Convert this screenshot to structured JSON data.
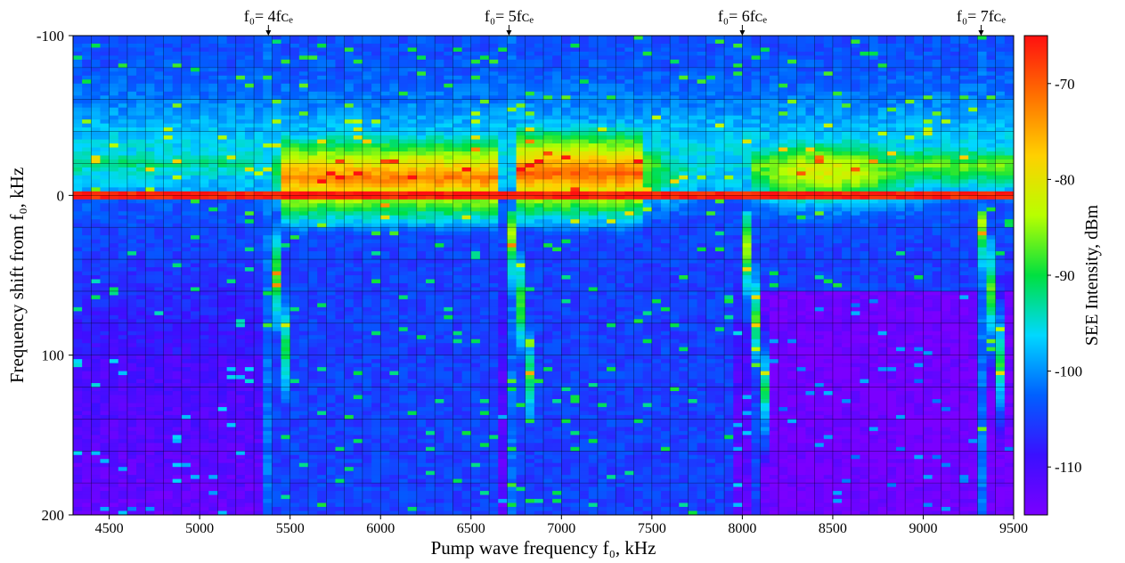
{
  "chart_data": {
    "type": "heatmap",
    "xlabel": "Pump wave frequency f₀, kHz",
    "ylabel": "Frequency shift from f₀, kHz",
    "colorbar_label": "SEE Intensity, dBm",
    "xlim": [
      4300,
      9500
    ],
    "ylim": [
      -100,
      200
    ],
    "y_inverted": true,
    "x_ticks": [
      4500,
      5000,
      5500,
      6000,
      6500,
      7000,
      7500,
      8000,
      8500,
      9000,
      9500
    ],
    "y_ticks": [
      -100,
      0,
      100,
      200
    ],
    "colorbar_range": [
      -115,
      -65
    ],
    "colorbar_ticks": [
      -70,
      -80,
      -90,
      -100,
      -110
    ],
    "colormap": [
      "#7a00ff",
      "#3a10ff",
      "#0060ff",
      "#00d8ff",
      "#00e040",
      "#b8ff00",
      "#ffd000",
      "#ff7000",
      "#ff1010"
    ],
    "grid": true,
    "annotations": [
      {
        "text": "f₀= 4fᴄₑ",
        "x": 5380
      },
      {
        "text": "f₀= 5fᴄₑ",
        "x": 6710
      },
      {
        "text": "f₀= 6fᴄₑ",
        "x": 8000
      },
      {
        "text": "f₀= 7fᴄₑ",
        "x": 9320
      }
    ],
    "gyroharmonics_x": [
      5380,
      6710,
      8000,
      9320
    ]
  }
}
